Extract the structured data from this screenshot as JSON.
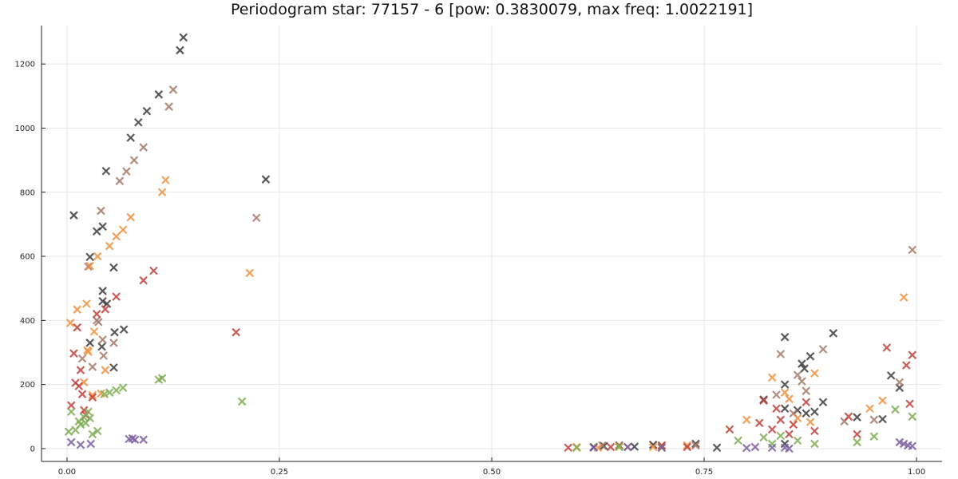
{
  "chart_data": {
    "type": "scatter",
    "title": "Periodogram star: 77157 - 6 [pow: 0.3830079, max freq: 1.0022191]",
    "xlabel": "",
    "ylabel": "",
    "xlim": [
      -0.03,
      1.03
    ],
    "ylim": [
      -40,
      1320
    ],
    "xticks": [
      0.0,
      0.25,
      0.5,
      0.75,
      1.0
    ],
    "xtick_labels": [
      "0.00",
      "0.25",
      "0.50",
      "0.75",
      "1.00"
    ],
    "yticks": [
      0,
      200,
      400,
      600,
      800,
      1000,
      1200
    ],
    "ytick_labels": [
      "0",
      "200",
      "400",
      "600",
      "800",
      "1000",
      "1200"
    ],
    "grid": true,
    "marker": "x",
    "series": [
      {
        "color": "#3b3b3b",
        "points": [
          [
            0.008,
            728
          ],
          [
            0.027,
            598
          ],
          [
            0.027,
            330
          ],
          [
            0.035,
            678
          ],
          [
            0.041,
            318
          ],
          [
            0.042,
            693
          ],
          [
            0.042,
            492
          ],
          [
            0.042,
            460
          ],
          [
            0.046,
            866
          ],
          [
            0.047,
            452
          ],
          [
            0.055,
            565
          ],
          [
            0.055,
            253
          ],
          [
            0.056,
            363
          ],
          [
            0.067,
            372
          ],
          [
            0.075,
            970
          ],
          [
            0.084,
            1018
          ],
          [
            0.094,
            1053
          ],
          [
            0.108,
            1105
          ],
          [
            0.133,
            1243
          ],
          [
            0.137,
            1283
          ],
          [
            0.234,
            840
          ],
          [
            0.62,
            5
          ],
          [
            0.632,
            8
          ],
          [
            0.65,
            10
          ],
          [
            0.668,
            6
          ],
          [
            0.69,
            12
          ],
          [
            0.74,
            15
          ],
          [
            0.765,
            3
          ],
          [
            0.82,
            153
          ],
          [
            0.845,
            348
          ],
          [
            0.845,
            200
          ],
          [
            0.845,
            125
          ],
          [
            0.845,
            15
          ],
          [
            0.86,
            120
          ],
          [
            0.865,
            265
          ],
          [
            0.868,
            250
          ],
          [
            0.87,
            110
          ],
          [
            0.875,
            288
          ],
          [
            0.88,
            115
          ],
          [
            0.89,
            145
          ],
          [
            0.902,
            360
          ],
          [
            0.93,
            98
          ],
          [
            0.96,
            92
          ],
          [
            0.97,
            228
          ],
          [
            0.98,
            190
          ]
        ]
      },
      {
        "color": "#a6796b",
        "points": [
          [
            0.018,
            281
          ],
          [
            0.025,
            568
          ],
          [
            0.03,
            255
          ],
          [
            0.035,
            400
          ],
          [
            0.037,
            395
          ],
          [
            0.04,
            742
          ],
          [
            0.042,
            340
          ],
          [
            0.043,
            290
          ],
          [
            0.055,
            330
          ],
          [
            0.062,
            835
          ],
          [
            0.07,
            865
          ],
          [
            0.079,
            900
          ],
          [
            0.09,
            940
          ],
          [
            0.12,
            1067
          ],
          [
            0.125,
            1120
          ],
          [
            0.223,
            720
          ],
          [
            0.63,
            10
          ],
          [
            0.66,
            5
          ],
          [
            0.7,
            8
          ],
          [
            0.74,
            10
          ],
          [
            0.84,
            295
          ],
          [
            0.835,
            168
          ],
          [
            0.855,
            110
          ],
          [
            0.86,
            230
          ],
          [
            0.865,
            210
          ],
          [
            0.87,
            180
          ],
          [
            0.89,
            310
          ],
          [
            0.915,
            85
          ],
          [
            0.95,
            90
          ],
          [
            0.98,
            207
          ],
          [
            0.995,
            620
          ]
        ]
      },
      {
        "color": "#f0913f",
        "points": [
          [
            0.004,
            392
          ],
          [
            0.012,
            434
          ],
          [
            0.02,
            207
          ],
          [
            0.023,
            452
          ],
          [
            0.024,
            307
          ],
          [
            0.025,
            302
          ],
          [
            0.027,
            570
          ],
          [
            0.03,
            167
          ],
          [
            0.032,
            365
          ],
          [
            0.036,
            600
          ],
          [
            0.04,
            172
          ],
          [
            0.045,
            245
          ],
          [
            0.05,
            632
          ],
          [
            0.058,
            662
          ],
          [
            0.066,
            683
          ],
          [
            0.075,
            722
          ],
          [
            0.112,
            800
          ],
          [
            0.116,
            838
          ],
          [
            0.215,
            548
          ],
          [
            0.6,
            5
          ],
          [
            0.625,
            3
          ],
          [
            0.65,
            8
          ],
          [
            0.69,
            5
          ],
          [
            0.73,
            10
          ],
          [
            0.8,
            90
          ],
          [
            0.83,
            222
          ],
          [
            0.845,
            175
          ],
          [
            0.85,
            155
          ],
          [
            0.86,
            95
          ],
          [
            0.875,
            83
          ],
          [
            0.88,
            235
          ],
          [
            0.945,
            125
          ],
          [
            0.96,
            150
          ],
          [
            0.985,
            472
          ]
        ]
      },
      {
        "color": "#c0403b",
        "points": [
          [
            0.005,
            135
          ],
          [
            0.008,
            297
          ],
          [
            0.01,
            205
          ],
          [
            0.012,
            378
          ],
          [
            0.014,
            195
          ],
          [
            0.016,
            245
          ],
          [
            0.018,
            170
          ],
          [
            0.02,
            120
          ],
          [
            0.022,
            105
          ],
          [
            0.03,
            160
          ],
          [
            0.035,
            420
          ],
          [
            0.045,
            435
          ],
          [
            0.058,
            474
          ],
          [
            0.09,
            525
          ],
          [
            0.102,
            555
          ],
          [
            0.199,
            363
          ],
          [
            0.59,
            3
          ],
          [
            0.64,
            5
          ],
          [
            0.7,
            10
          ],
          [
            0.73,
            5
          ],
          [
            0.78,
            60
          ],
          [
            0.815,
            80
          ],
          [
            0.82,
            150
          ],
          [
            0.83,
            60
          ],
          [
            0.835,
            125
          ],
          [
            0.84,
            90
          ],
          [
            0.85,
            45
          ],
          [
            0.855,
            75
          ],
          [
            0.87,
            145
          ],
          [
            0.88,
            55
          ],
          [
            0.92,
            100
          ],
          [
            0.93,
            45
          ],
          [
            0.965,
            315
          ],
          [
            0.988,
            260
          ],
          [
            0.992,
            140
          ],
          [
            0.995,
            292
          ]
        ]
      },
      {
        "color": "#7dad52",
        "points": [
          [
            0.002,
            53
          ],
          [
            0.005,
            115
          ],
          [
            0.01,
            58
          ],
          [
            0.014,
            85
          ],
          [
            0.016,
            75
          ],
          [
            0.02,
            98
          ],
          [
            0.022,
            80
          ],
          [
            0.025,
            115
          ],
          [
            0.027,
            95
          ],
          [
            0.03,
            45
          ],
          [
            0.036,
            55
          ],
          [
            0.044,
            170
          ],
          [
            0.05,
            175
          ],
          [
            0.058,
            182
          ],
          [
            0.066,
            190
          ],
          [
            0.108,
            215
          ],
          [
            0.112,
            220
          ],
          [
            0.206,
            147
          ],
          [
            0.6,
            3
          ],
          [
            0.65,
            5
          ],
          [
            0.7,
            3
          ],
          [
            0.79,
            25
          ],
          [
            0.82,
            35
          ],
          [
            0.83,
            15
          ],
          [
            0.84,
            40
          ],
          [
            0.86,
            25
          ],
          [
            0.88,
            15
          ],
          [
            0.93,
            20
          ],
          [
            0.95,
            38
          ],
          [
            0.975,
            122
          ],
          [
            0.995,
            100
          ]
        ]
      },
      {
        "color": "#7b5ea0",
        "points": [
          [
            0.005,
            20
          ],
          [
            0.016,
            12
          ],
          [
            0.028,
            15
          ],
          [
            0.073,
            30
          ],
          [
            0.077,
            32
          ],
          [
            0.08,
            28
          ],
          [
            0.09,
            28
          ],
          [
            0.62,
            3
          ],
          [
            0.66,
            5
          ],
          [
            0.7,
            3
          ],
          [
            0.8,
            2
          ],
          [
            0.81,
            5
          ],
          [
            0.83,
            3
          ],
          [
            0.845,
            3
          ],
          [
            0.85,
            0
          ],
          [
            0.98,
            20
          ],
          [
            0.985,
            15
          ],
          [
            0.99,
            10
          ],
          [
            0.995,
            8
          ]
        ]
      }
    ]
  }
}
